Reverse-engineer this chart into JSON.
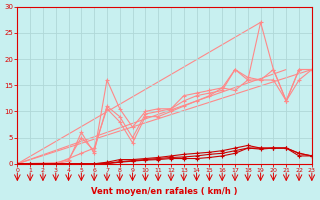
{
  "background_color": "#c8f0f0",
  "grid_color": "#b0d8d8",
  "xlabel": "Vent moyen/en rafales ( km/h )",
  "xlabel_color": "#dd0000",
  "tick_color": "#dd0000",
  "axis_color": "#dd0000",
  "ylim": [
    0,
    30
  ],
  "xlim": [
    0,
    23
  ],
  "yticks": [
    0,
    5,
    10,
    15,
    20,
    25,
    30
  ],
  "xticks": [
    0,
    1,
    2,
    3,
    4,
    5,
    6,
    7,
    8,
    9,
    10,
    11,
    12,
    13,
    14,
    15,
    16,
    17,
    18,
    19,
    20,
    21,
    22,
    23
  ],
  "series_pink": [
    {
      "x": [
        0,
        3,
        4,
        5,
        6,
        7,
        8,
        9,
        10,
        11,
        12,
        13,
        14,
        15,
        16,
        17,
        18,
        19,
        20,
        21,
        22,
        23
      ],
      "y": [
        0,
        0,
        0.5,
        6,
        2,
        16,
        10.5,
        7,
        10,
        10.5,
        10.5,
        13,
        13.5,
        14,
        14.5,
        18,
        16,
        27,
        18,
        12,
        18,
        18
      ]
    },
    {
      "x": [
        0,
        3,
        4,
        5,
        6,
        7,
        8,
        9,
        10,
        11,
        12,
        13,
        14,
        15,
        16,
        17,
        18,
        19,
        20,
        21,
        22,
        23
      ],
      "y": [
        0,
        0.2,
        0.8,
        5,
        2.5,
        11,
        9,
        5,
        9.5,
        10,
        10.5,
        12,
        13,
        13.5,
        14,
        18,
        16.5,
        16,
        18,
        12,
        18,
        18
      ]
    },
    {
      "x": [
        0,
        3,
        5,
        6,
        7,
        8,
        9,
        10,
        11,
        12,
        13,
        14,
        15,
        16,
        17,
        18,
        19,
        20,
        21,
        22,
        23
      ],
      "y": [
        0,
        0,
        2,
        3,
        10.5,
        8,
        4,
        9,
        9,
        10,
        11,
        12,
        13,
        14.5,
        14,
        16,
        16,
        16,
        12,
        16,
        18
      ]
    }
  ],
  "series_darkred": [
    {
      "x": [
        0,
        1,
        2,
        3,
        4,
        5,
        6,
        7,
        8,
        9,
        10,
        11,
        12,
        13,
        14,
        15,
        16,
        17,
        18,
        19,
        20,
        21,
        22,
        23
      ],
      "y": [
        0,
        0,
        0,
        0,
        0,
        0,
        0,
        0,
        0.3,
        0.5,
        0.7,
        0.8,
        1,
        1,
        1,
        1.2,
        1.5,
        2,
        3,
        3,
        3,
        3,
        1.5,
        1.5
      ]
    },
    {
      "x": [
        0,
        1,
        2,
        3,
        4,
        5,
        6,
        7,
        8,
        9,
        10,
        11,
        12,
        13,
        14,
        15,
        16,
        17,
        18,
        19,
        20,
        21,
        22,
        23
      ],
      "y": [
        0,
        0,
        0,
        0,
        0,
        0,
        0,
        0.1,
        0.4,
        0.6,
        0.8,
        1,
        1.2,
        1.3,
        1.5,
        1.8,
        2,
        2.5,
        3,
        2.8,
        3,
        3,
        2,
        1.5
      ]
    },
    {
      "x": [
        0,
        1,
        2,
        3,
        4,
        5,
        6,
        7,
        8,
        9,
        10,
        11,
        12,
        13,
        14,
        15,
        16,
        17,
        18,
        19,
        20,
        21,
        22,
        23
      ],
      "y": [
        0,
        0,
        0,
        0,
        0,
        0,
        0,
        0.3,
        0.8,
        0.8,
        1,
        1.2,
        1.5,
        1.8,
        2,
        2.2,
        2.5,
        3,
        3.5,
        3,
        3,
        3,
        2,
        1.5
      ]
    }
  ],
  "lines_pink": [
    {
      "x": [
        0,
        23
      ],
      "y": [
        0,
        18
      ]
    },
    {
      "x": [
        0,
        21
      ],
      "y": [
        0,
        18
      ]
    },
    {
      "x": [
        0,
        19
      ],
      "y": [
        0,
        27
      ]
    }
  ],
  "pink_color": "#ff8888",
  "dark_color": "#cc0000"
}
